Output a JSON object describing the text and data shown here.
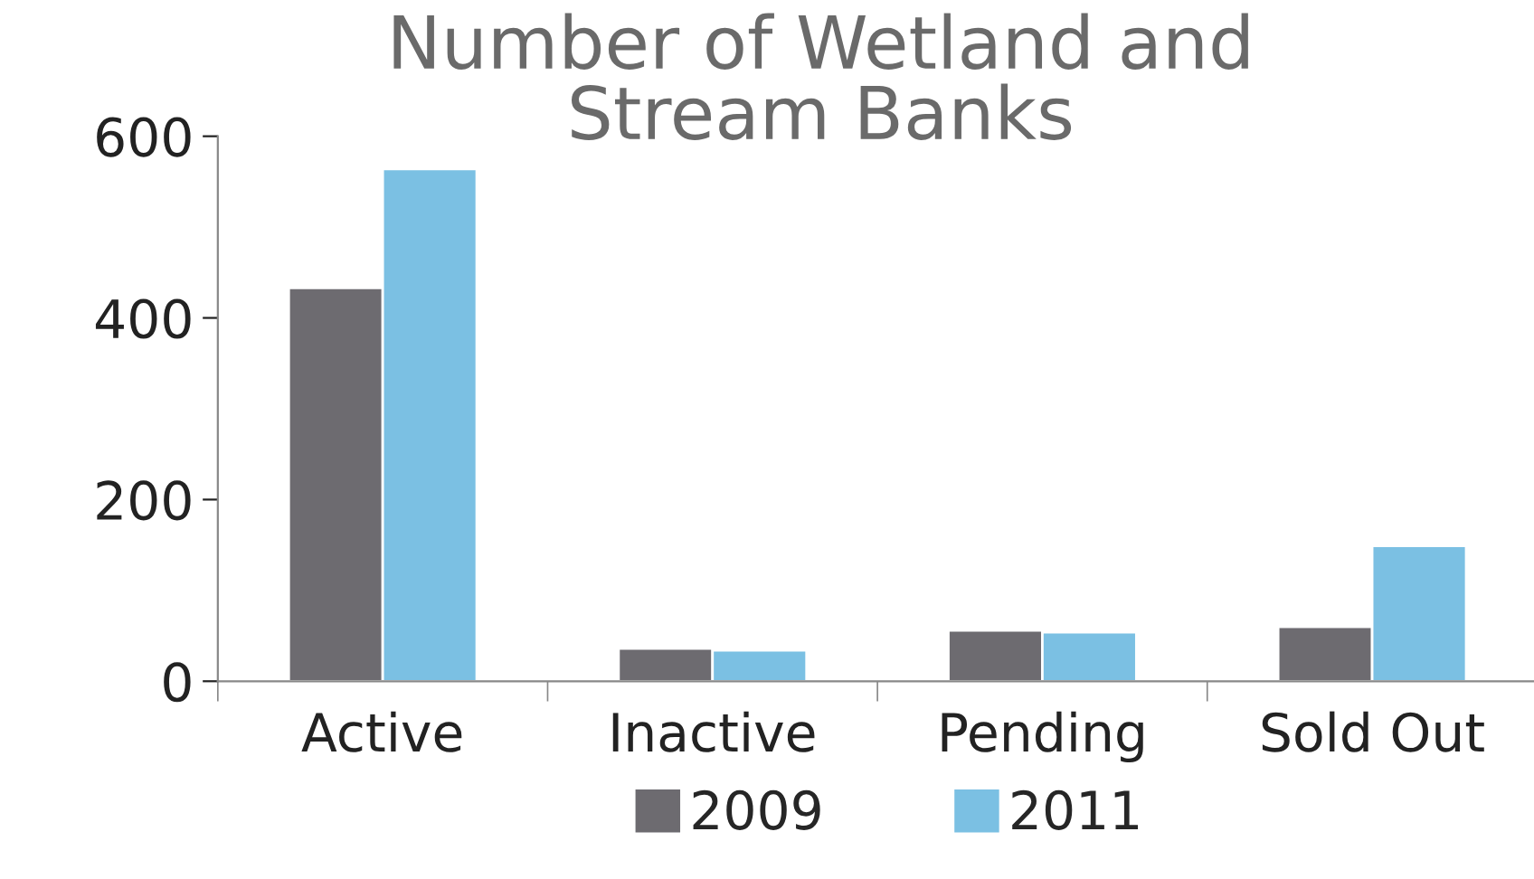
{
  "chart_data": {
    "type": "bar",
    "title": "Number of Wetland and\nStream Banks",
    "categories": [
      "Active",
      "Inactive",
      "Pending",
      "Sold Out"
    ],
    "series": [
      {
        "name": "2009",
        "color": "#6d6b70",
        "values": [
          433,
          36,
          56,
          60
        ]
      },
      {
        "name": "2011",
        "color": "#7bc0e3",
        "values": [
          564,
          34,
          54,
          149
        ]
      }
    ],
    "ylim": [
      0,
      600
    ],
    "yticks": [
      0,
      200,
      400,
      600
    ],
    "grid": false,
    "legend": "bottom"
  }
}
